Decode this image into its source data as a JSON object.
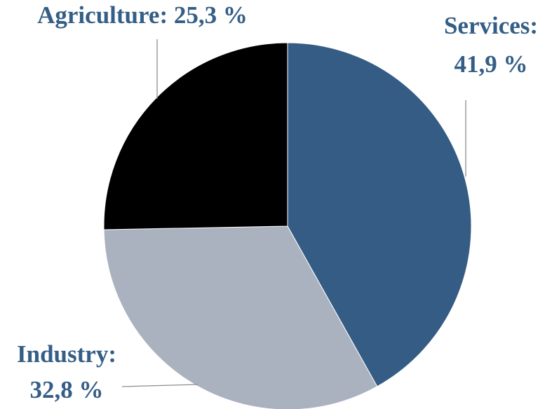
{
  "chart_data": {
    "type": "pie",
    "title": "",
    "slices": [
      {
        "name": "Services",
        "value": 41.9,
        "label_lines": [
          "Services:",
          "41,9 %"
        ],
        "color": "#345c84"
      },
      {
        "name": "Industry",
        "value": 32.8,
        "label_lines": [
          "Industry:",
          "32,8 %"
        ],
        "color": "#aab1bf"
      },
      {
        "name": "Agriculture",
        "value": 25.3,
        "label_lines": [
          "Agriculture: 25,3 %"
        ],
        "color": "#000000"
      }
    ],
    "start_angle": "12 o'clock",
    "direction": "clockwise",
    "legend": "none",
    "label_color": "#345e86"
  }
}
